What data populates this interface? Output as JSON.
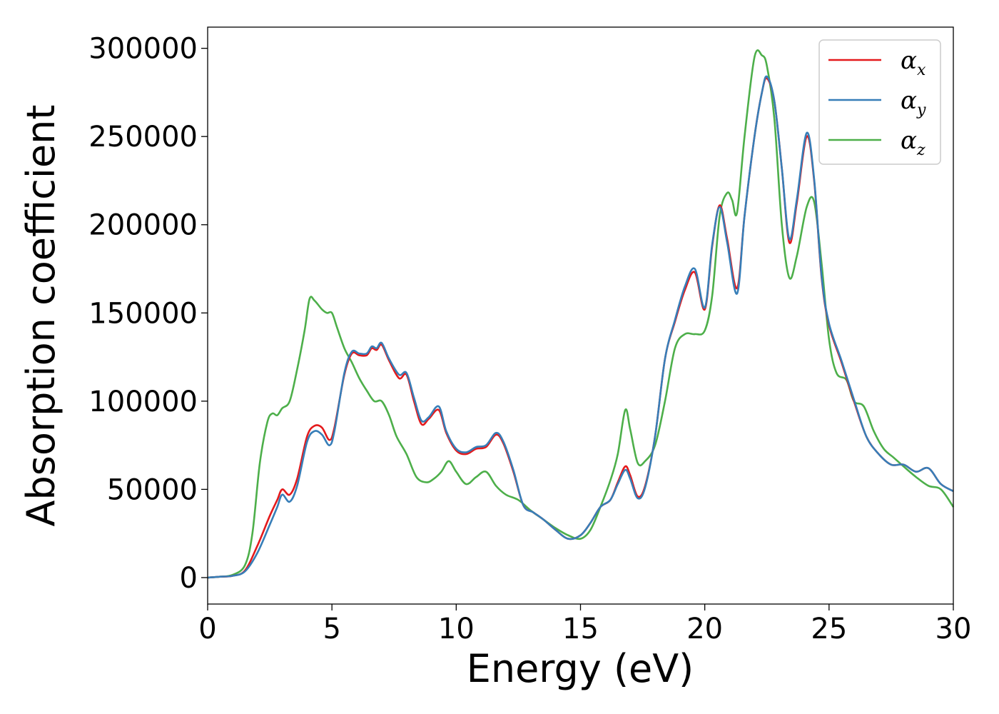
{
  "chart_data": {
    "type": "line",
    "title": "",
    "xlabel": "Energy (eV)",
    "ylabel": "Absorption coefficient",
    "xlim": [
      0,
      30
    ],
    "ylim": [
      -15000,
      312000
    ],
    "xticks": [
      0,
      5,
      10,
      15,
      20,
      25,
      30
    ],
    "yticks": [
      0,
      50000,
      100000,
      150000,
      200000,
      250000,
      300000
    ],
    "grid": false,
    "legend_position": "top-right",
    "series": [
      {
        "name": "α_x",
        "symbol": "α",
        "subscript": "x",
        "color": "#e41a1c",
        "x": [
          0,
          0.5,
          1.0,
          1.5,
          2.0,
          2.5,
          2.8,
          3.0,
          3.3,
          3.6,
          4.0,
          4.3,
          4.6,
          4.9,
          5.1,
          5.5,
          5.8,
          6.1,
          6.4,
          6.6,
          6.8,
          7.0,
          7.3,
          7.7,
          8.0,
          8.3,
          8.6,
          8.9,
          9.3,
          9.6,
          10.0,
          10.4,
          10.8,
          11.2,
          11.6,
          11.9,
          12.3,
          12.7,
          13.1,
          13.5,
          14.0,
          14.5,
          15.0,
          15.4,
          15.8,
          16.2,
          16.5,
          16.8,
          17.0,
          17.3,
          17.6,
          18.0,
          18.4,
          18.8,
          19.2,
          19.6,
          20.0,
          20.3,
          20.6,
          20.9,
          21.3,
          21.6,
          22.0,
          22.3,
          22.5,
          22.8,
          23.1,
          23.4,
          23.7,
          24.1,
          24.4,
          24.7,
          25.0,
          25.5,
          26.0,
          26.5,
          27.0,
          27.5,
          28.0,
          28.5,
          29.0,
          29.5,
          30.0
        ],
        "y": [
          0,
          500,
          1000,
          4000,
          18000,
          35000,
          44000,
          50000,
          47000,
          56000,
          80000,
          86000,
          85000,
          78000,
          85000,
          115000,
          127000,
          126000,
          126000,
          130000,
          129000,
          132000,
          123000,
          113000,
          115000,
          100000,
          87000,
          90000,
          95000,
          82000,
          72000,
          70000,
          73000,
          74000,
          81000,
          76000,
          60000,
          41000,
          37000,
          33000,
          27000,
          22000,
          24000,
          31000,
          40000,
          44000,
          54000,
          63000,
          58000,
          46000,
          52000,
          80000,
          124000,
          145000,
          163000,
          173000,
          152000,
          188000,
          211000,
          192000,
          164000,
          205000,
          250000,
          275000,
          283000,
          270000,
          232000,
          190000,
          212000,
          250000,
          225000,
          170000,
          143000,
          122000,
          100000,
          80000,
          70000,
          64000,
          64000,
          60000,
          62000,
          53000,
          49000
        ]
      },
      {
        "name": "α_y",
        "symbol": "α",
        "subscript": "y",
        "color": "#377eb8",
        "x": [
          0,
          0.5,
          1.0,
          1.5,
          2.0,
          2.5,
          2.8,
          3.0,
          3.3,
          3.6,
          4.0,
          4.3,
          4.6,
          4.9,
          5.1,
          5.5,
          5.8,
          6.1,
          6.4,
          6.6,
          6.8,
          7.0,
          7.3,
          7.7,
          8.0,
          8.3,
          8.6,
          8.9,
          9.3,
          9.6,
          10.0,
          10.4,
          10.8,
          11.2,
          11.6,
          11.9,
          12.3,
          12.7,
          13.1,
          13.5,
          14.0,
          14.5,
          15.0,
          15.4,
          15.8,
          16.2,
          16.5,
          16.8,
          17.0,
          17.3,
          17.6,
          18.0,
          18.4,
          18.8,
          19.2,
          19.6,
          20.0,
          20.3,
          20.6,
          20.9,
          21.3,
          21.6,
          22.0,
          22.3,
          22.5,
          22.8,
          23.1,
          23.4,
          23.7,
          24.1,
          24.4,
          24.7,
          25.0,
          25.5,
          26.0,
          26.5,
          27.0,
          27.5,
          28.0,
          28.5,
          29.0,
          29.5,
          30.0
        ],
        "y": [
          0,
          500,
          1000,
          3500,
          14000,
          30000,
          40000,
          47000,
          43000,
          52000,
          77000,
          83000,
          81000,
          75000,
          83000,
          116000,
          128000,
          127000,
          127000,
          131000,
          130000,
          133000,
          124000,
          115000,
          116000,
          102000,
          89000,
          91000,
          97000,
          83000,
          73000,
          71000,
          74000,
          75000,
          82000,
          77000,
          61000,
          41000,
          37000,
          33000,
          27000,
          22000,
          24000,
          31000,
          40000,
          44000,
          53000,
          61000,
          56000,
          45000,
          51000,
          80000,
          124000,
          146000,
          165000,
          175000,
          153000,
          189000,
          210000,
          190000,
          161000,
          205000,
          250000,
          275000,
          284000,
          270000,
          232000,
          192000,
          214000,
          252000,
          226000,
          171000,
          144000,
          123000,
          101000,
          80000,
          70000,
          64000,
          64000,
          60000,
          62000,
          53000,
          49000
        ]
      },
      {
        "name": "α_z",
        "symbol": "α",
        "subscript": "z",
        "color": "#4daf4a",
        "x": [
          0,
          0.5,
          1.0,
          1.5,
          1.8,
          2.1,
          2.4,
          2.6,
          2.8,
          3.0,
          3.3,
          3.6,
          3.9,
          4.1,
          4.3,
          4.6,
          4.8,
          5.0,
          5.2,
          5.5,
          5.8,
          6.1,
          6.4,
          6.7,
          7.0,
          7.3,
          7.6,
          8.0,
          8.4,
          8.8,
          9.1,
          9.4,
          9.7,
          10.0,
          10.4,
          10.8,
          11.2,
          11.6,
          12.0,
          12.5,
          13.0,
          13.5,
          14.0,
          14.5,
          15.0,
          15.4,
          15.8,
          16.2,
          16.5,
          16.8,
          17.0,
          17.3,
          17.6,
          18.0,
          18.4,
          18.8,
          19.2,
          19.6,
          20.0,
          20.3,
          20.6,
          20.9,
          21.1,
          21.3,
          21.6,
          22.0,
          22.3,
          22.5,
          22.8,
          23.1,
          23.4,
          23.7,
          24.1,
          24.4,
          24.7,
          25.0,
          25.3,
          25.7,
          26.0,
          26.4,
          26.8,
          27.2,
          27.6,
          28.0,
          28.5,
          29.0,
          29.5,
          30.0
        ],
        "y": [
          0,
          500,
          1500,
          7000,
          25000,
          65000,
          88000,
          93000,
          92000,
          96000,
          100000,
          118000,
          140000,
          158000,
          157000,
          152000,
          150000,
          150000,
          142000,
          130000,
          122000,
          113000,
          106000,
          100000,
          100000,
          92000,
          80000,
          70000,
          57000,
          54000,
          56000,
          60000,
          66000,
          60000,
          53000,
          57000,
          60000,
          52000,
          47000,
          44000,
          38000,
          33000,
          28000,
          24000,
          22000,
          27000,
          40000,
          55000,
          70000,
          95000,
          84000,
          65000,
          66000,
          75000,
          100000,
          130000,
          138000,
          138000,
          140000,
          160000,
          205000,
          218000,
          214000,
          207000,
          250000,
          295000,
          296000,
          290000,
          260000,
          200000,
          170000,
          182000,
          210000,
          213000,
          178000,
          135000,
          116000,
          112000,
          100000,
          97000,
          83000,
          73000,
          68000,
          63000,
          57000,
          52000,
          50000,
          40000
        ]
      }
    ]
  }
}
